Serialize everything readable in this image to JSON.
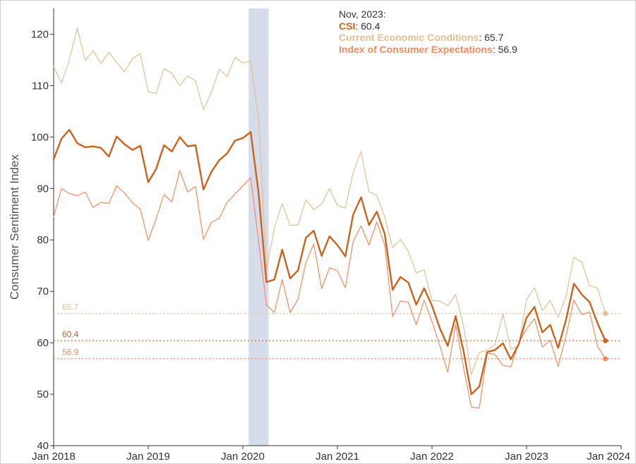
{
  "chart_data": {
    "type": "line",
    "ylabel": "Consumer Sentiment Index",
    "ylim": [
      40,
      125
    ],
    "yticks": [
      40,
      50,
      60,
      70,
      80,
      90,
      100,
      110,
      120
    ],
    "x_ticks": [
      {
        "label": "Jan 2018",
        "x": "2018-01"
      },
      {
        "label": "Jan 2019",
        "x": "2019-01"
      },
      {
        "label": "Jan 2020",
        "x": "2020-01"
      },
      {
        "label": "Jan 2021",
        "x": "2021-01"
      },
      {
        "label": "Jan 2022",
        "x": "2022-01"
      },
      {
        "label": "Jan 2023",
        "x": "2023-01"
      },
      {
        "label": "Jan 2024",
        "x": "2024-01"
      }
    ],
    "x_range": [
      "2018-01",
      "2024-01"
    ],
    "shaded_period": [
      "2020-02",
      "2020-04"
    ],
    "grid": false,
    "x": [
      "2018-01",
      "2018-02",
      "2018-03",
      "2018-04",
      "2018-05",
      "2018-06",
      "2018-07",
      "2018-08",
      "2018-09",
      "2018-10",
      "2018-11",
      "2018-12",
      "2019-01",
      "2019-02",
      "2019-03",
      "2019-04",
      "2019-05",
      "2019-06",
      "2019-07",
      "2019-08",
      "2019-09",
      "2019-10",
      "2019-11",
      "2019-12",
      "2020-01",
      "2020-02",
      "2020-03",
      "2020-04",
      "2020-05",
      "2020-06",
      "2020-07",
      "2020-08",
      "2020-09",
      "2020-10",
      "2020-11",
      "2020-12",
      "2021-01",
      "2021-02",
      "2021-03",
      "2021-04",
      "2021-05",
      "2021-06",
      "2021-07",
      "2021-08",
      "2021-09",
      "2021-10",
      "2021-11",
      "2021-12",
      "2022-01",
      "2022-02",
      "2022-03",
      "2022-04",
      "2022-05",
      "2022-06",
      "2022-07",
      "2022-08",
      "2022-09",
      "2022-10",
      "2022-11",
      "2022-12",
      "2023-01",
      "2023-02",
      "2023-03",
      "2023-04",
      "2023-05",
      "2023-06",
      "2023-07",
      "2023-08",
      "2023-09",
      "2023-10",
      "2023-11"
    ],
    "series": [
      {
        "key": "current",
        "name": "Current Economic Conditions",
        "color": "#e0bf93",
        "width": 1.2,
        "values": [
          113.7,
          110.5,
          115.0,
          121.2,
          114.9,
          116.8,
          114.3,
          116.5,
          114.5,
          112.7,
          115.3,
          116.2,
          108.8,
          108.5,
          113.3,
          112.4,
          110.0,
          111.9,
          110.9,
          105.3,
          108.6,
          113.2,
          111.8,
          115.5,
          114.4,
          114.8,
          103.7,
          74.3,
          82.3,
          87.1,
          82.8,
          82.9,
          87.8,
          85.9,
          87.0,
          90.0,
          86.7,
          86.2,
          93.1,
          97.2,
          89.4,
          88.6,
          84.5,
          78.5,
          80.1,
          77.7,
          73.6,
          74.2,
          68.2,
          68.1,
          67.2,
          69.4,
          63.3,
          53.8,
          58.1,
          58.6,
          59.7,
          65.6,
          58.8,
          59.4,
          68.4,
          70.7,
          66.3,
          68.2,
          64.9,
          69.0,
          76.6,
          75.7,
          71.1,
          70.6,
          65.7
        ]
      },
      {
        "key": "csi",
        "name": "CSI",
        "color": "#c8641e",
        "width": 2.4,
        "values": [
          95.7,
          99.7,
          101.4,
          98.8,
          98.0,
          98.2,
          97.9,
          96.2,
          100.1,
          98.6,
          97.5,
          98.3,
          91.2,
          93.8,
          98.4,
          97.2,
          100.0,
          98.2,
          98.4,
          89.8,
          93.2,
          95.5,
          96.8,
          99.3,
          99.8,
          101.0,
          89.1,
          71.8,
          72.3,
          78.1,
          72.5,
          74.1,
          80.4,
          81.8,
          76.9,
          80.7,
          79.0,
          76.8,
          84.9,
          88.3,
          82.9,
          85.5,
          81.2,
          70.3,
          72.8,
          71.7,
          67.4,
          70.6,
          67.2,
          62.8,
          59.4,
          65.2,
          58.4,
          50.0,
          51.5,
          58.2,
          58.6,
          59.9,
          56.8,
          59.7,
          64.9,
          67.0,
          62.0,
          63.5,
          59.0,
          64.4,
          71.5,
          69.4,
          67.9,
          63.8,
          60.4
        ]
      },
      {
        "key": "expectations",
        "name": "Index of Consumer Expectations",
        "color": "#f58a5f",
        "width": 1.2,
        "values": [
          84.5,
          90.0,
          89.0,
          88.6,
          89.3,
          86.3,
          87.3,
          87.1,
          90.5,
          89.1,
          87.2,
          86.0,
          79.9,
          84.1,
          88.8,
          87.4,
          93.5,
          89.3,
          90.4,
          80.1,
          83.4,
          84.2,
          87.3,
          88.9,
          90.5,
          92.1,
          79.7,
          67.3,
          65.9,
          72.3,
          65.9,
          68.5,
          75.6,
          79.2,
          70.5,
          74.6,
          74.0,
          70.7,
          79.7,
          82.7,
          79.0,
          83.5,
          79.0,
          65.1,
          68.1,
          67.9,
          63.5,
          68.3,
          64.1,
          59.4,
          54.3,
          63.6,
          55.2,
          47.5,
          47.3,
          58.0,
          57.7,
          55.6,
          55.3,
          59.9,
          62.7,
          64.7,
          59.2,
          60.5,
          55.4,
          61.3,
          68.3,
          65.5,
          66.0,
          59.3,
          56.9
        ]
      }
    ],
    "reference_lines": [
      {
        "key": "current",
        "value": 65.7,
        "label": "65.7",
        "color": "#e0bf93"
      },
      {
        "key": "csi",
        "value": 60.4,
        "label": "60.4",
        "color": "#c8641e"
      },
      {
        "key": "expectations",
        "value": 56.9,
        "label": "56.9",
        "color": "#f58a5f"
      }
    ],
    "tooltip": {
      "date": "Nov, 2023:",
      "rows": [
        {
          "name": "CSI",
          "value": "60.4",
          "color": "#c8641e"
        },
        {
          "name": "Current Economic Conditions",
          "value": "65.7",
          "color": "#e0bf93"
        },
        {
          "name": "Index of Consumer Expectations",
          "value": "56.9",
          "color": "#f58a5f"
        }
      ]
    }
  },
  "colors": {
    "shaded_band": "#d6dcea",
    "axis": "#333333"
  }
}
